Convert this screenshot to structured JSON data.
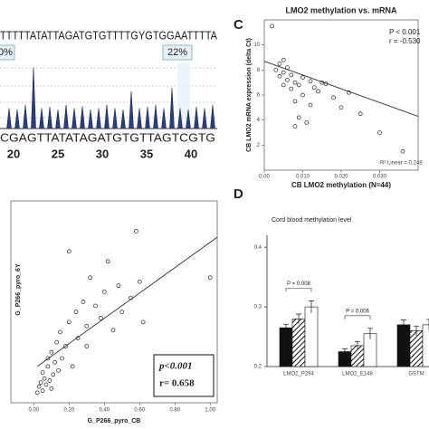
{
  "panel_b": {
    "sequence": "TTTTTATATTAGATGTGTTTTGYGTGGAATTTTA",
    "percent_labels": [
      "0%",
      "22%"
    ],
    "peaks": [
      30,
      28,
      35,
      90,
      30,
      32,
      28,
      35,
      30,
      33,
      28,
      30,
      35,
      30,
      28,
      55,
      30,
      32,
      35,
      30,
      60,
      30,
      28,
      32,
      30,
      35
    ],
    "dispensation": "CGAGTTATATAGATGTGTTAGTCGTG",
    "positions": [
      20,
      25,
      30,
      35,
      40
    ]
  },
  "panel_c": {
    "label": "C",
    "title": "LMO2 methylation vs. mRNA",
    "x_label": "CB LMO2 methylation (N=44)",
    "y_label": "CB LMO2 mRNA expression (delta Ct)",
    "annotations": [
      "P < 0.001",
      "r = -0.530"
    ],
    "r2_label": "R² Linear = 0.248",
    "xlim": [
      0,
      0.04
    ],
    "xticks": [
      {
        "value": 0,
        "label": "0.00"
      },
      {
        "value": 0.01,
        "label": "0.010"
      },
      {
        "value": 0.02,
        "label": "0.020"
      },
      {
        "value": 0.03,
        "label": "0.030"
      }
    ],
    "ylim": [
      0,
      12
    ],
    "yticks": [
      2,
      4,
      6,
      8,
      10
    ],
    "x": [
      0.002,
      0.003,
      0.004,
      0.004,
      0.005,
      0.005,
      0.006,
      0.006,
      0.007,
      0.007,
      0.008,
      0.008,
      0.009,
      0.009,
      0.01,
      0.01,
      0.011,
      0.012,
      0.012,
      0.013,
      0.014,
      0.015,
      0.016,
      0.018,
      0.02,
      0.022,
      0.025,
      0.03,
      0.005,
      0.008,
      0.036
    ],
    "y": [
      11.5,
      8.0,
      7.5,
      8.5,
      7.8,
      6.8,
      7.2,
      8.2,
      6.5,
      7.6,
      7.0,
      5.5,
      6.8,
      4.2,
      7.4,
      6.0,
      3.8,
      7.1,
      5.2,
      6.6,
      6.3,
      7.0,
      6.9,
      5.8,
      5.0,
      6.2,
      4.5,
      3.0,
      8.8,
      3.5,
      1.5
    ],
    "fit_line": {
      "x": [
        0,
        0.04
      ],
      "y": [
        8.7,
        4.3
      ]
    }
  },
  "panel_scatter": {
    "x_label": "G_P266_pyro_CB",
    "y_label": "G_P266_pyro_6Y",
    "annotations": [
      "p<0.001",
      "r= 0.658"
    ],
    "xlim": [
      -0.13,
      1.04
    ],
    "xticks": [
      {
        "value": 0,
        "label": "0.00"
      },
      {
        "value": 0.2,
        "label": "0.20"
      },
      {
        "value": 0.4,
        "label": "0.40"
      },
      {
        "value": 0.6,
        "label": "0.60"
      },
      {
        "value": 0.8,
        "label": "0.80"
      },
      {
        "value": 1,
        "label": "1.00"
      }
    ],
    "ylim": [
      0,
      1
    ],
    "x": [
      0.02,
      0.03,
      0.04,
      0.05,
      0.05,
      0.06,
      0.07,
      0.08,
      0.08,
      0.09,
      0.1,
      0.1,
      0.11,
      0.12,
      0.13,
      0.14,
      0.15,
      0.16,
      0.18,
      0.2,
      0.22,
      0.24,
      0.25,
      0.28,
      0.3,
      0.32,
      0.35,
      0.38,
      0.4,
      0.42,
      0.45,
      0.48,
      0.5,
      0.55,
      0.58,
      0.6,
      0.62,
      0.2,
      0.3,
      1.0
    ],
    "y": [
      0.05,
      0.08,
      0.1,
      0.06,
      0.15,
      0.12,
      0.09,
      0.18,
      0.22,
      0.11,
      0.07,
      0.25,
      0.14,
      0.2,
      0.3,
      0.16,
      0.35,
      0.22,
      0.28,
      0.4,
      0.18,
      0.45,
      0.32,
      0.5,
      0.38,
      0.62,
      0.48,
      0.42,
      0.55,
      0.7,
      0.36,
      0.58,
      0.45,
      0.52,
      0.85,
      0.6,
      0.4,
      0.75,
      0.28,
      0.62
    ],
    "fit_line": {
      "x": [
        0.02,
        1.04
      ],
      "y": [
        0.18,
        0.82
      ]
    }
  },
  "panel_d": {
    "label": "D",
    "title": "Cord blood methylation level",
    "categories": [
      "LMO2_P294",
      "LMO2_E148",
      "GSTM"
    ],
    "ylim": [
      0.2,
      0.42
    ],
    "yticks": [
      0.2,
      0.3,
      0.4
    ],
    "series": [
      {
        "color": "#111111",
        "values": [
          0.265,
          0.225,
          0.27
        ],
        "errors": [
          0.006,
          0.005,
          0.008
        ]
      },
      {
        "color": "#888888",
        "values": [
          0.28,
          0.235,
          0.26
        ],
        "errors": [
          0.008,
          0.007,
          0.008
        ]
      },
      {
        "color": "#ffffff",
        "values": [
          0.3,
          0.255,
          0.27
        ],
        "errors": [
          0.01,
          0.009,
          0.009
        ]
      }
    ],
    "comparisons": [
      "P = 0.008",
      "P = 0.006"
    ]
  }
}
